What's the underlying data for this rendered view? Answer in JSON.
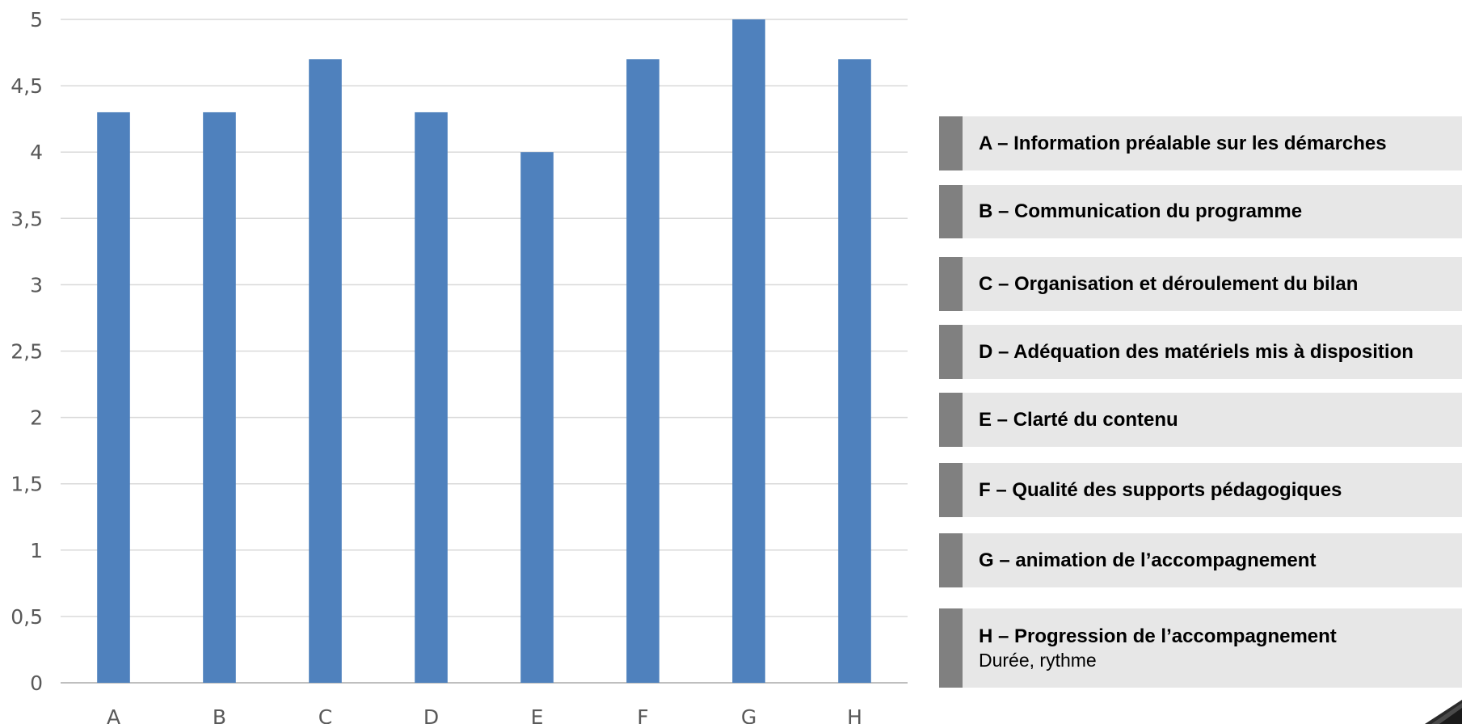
{
  "chart_data": {
    "type": "bar",
    "categories": [
      "A",
      "B",
      "C",
      "D",
      "E",
      "F",
      "G",
      "H"
    ],
    "values": [
      4.3,
      4.3,
      4.7,
      4.3,
      4.0,
      4.7,
      5.0,
      4.7
    ],
    "ylim": [
      0,
      5
    ],
    "yticks": [
      "0",
      "0,5",
      "1",
      "1,5",
      "2",
      "2,5",
      "3",
      "3,5",
      "4",
      "4,5",
      "5"
    ],
    "grid": true,
    "bar_color": "#4f81bd",
    "grid_color": "#d9d9d9",
    "axis_color": "#bfbfbf",
    "tick_color": "#595959"
  },
  "legend": {
    "placement": "right",
    "marker_color": "#808080",
    "box_color": "#e7e7e7",
    "items": [
      {
        "label": "A – Information préalable sur les démarches"
      },
      {
        "label": "B – Communication du programme"
      },
      {
        "label": "C – Organisation et déroulement du bilan"
      },
      {
        "label": "D – Adéquation des matériels mis à disposition"
      },
      {
        "label": "E – Clarté du contenu"
      },
      {
        "label": "F – Qualité des supports pédagogiques"
      },
      {
        "label": "G – animation de l’accompagnement"
      },
      {
        "label": "H – Progression de l’accompagnement",
        "sub": "Durée, rythme"
      }
    ]
  }
}
